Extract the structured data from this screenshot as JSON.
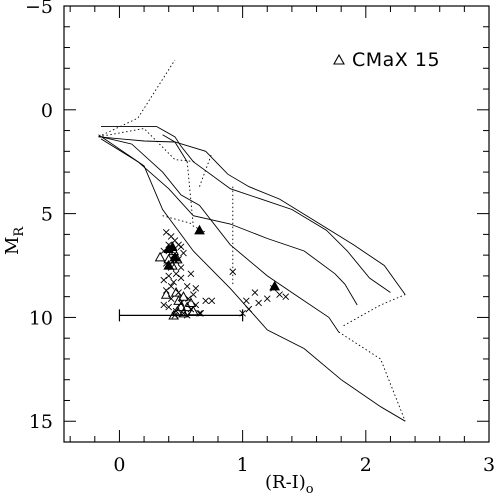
{
  "chart_data": {
    "type": "scatter",
    "xlabel": "(R-I)",
    "xlabel_subscript": "o",
    "ylabel": "M",
    "ylabel_subscript": "R",
    "xlim": [
      -0.45,
      3.0
    ],
    "ylim": [
      16.0,
      -5.0
    ],
    "x_ticks": [
      0,
      1,
      2,
      3
    ],
    "y_ticks": [
      -5,
      0,
      5,
      10,
      15
    ],
    "x_tick_labels": [
      "0",
      "1",
      "2",
      "3"
    ],
    "y_tick_labels": [
      "−5",
      "0",
      "5",
      "10",
      "15"
    ],
    "legend": {
      "label": "CMaX 15",
      "marker": "open-triangle",
      "placement": "top-right"
    },
    "reference_curves": [
      {
        "style": "solid",
        "points": [
          [
            -0.17,
            1.3
          ],
          [
            0.2,
            1.5
          ],
          [
            0.45,
            1.55
          ],
          [
            0.7,
            2.0
          ],
          [
            0.88,
            3.1
          ],
          [
            1.05,
            3.7
          ],
          [
            1.3,
            4.3
          ],
          [
            1.6,
            5.4
          ],
          [
            1.9,
            6.5
          ],
          [
            2.15,
            7.5
          ],
          [
            2.32,
            8.9
          ]
        ]
      },
      {
        "style": "solid",
        "points": [
          [
            -0.15,
            1.4
          ],
          [
            0.15,
            2.5
          ],
          [
            0.4,
            3.8
          ],
          [
            0.6,
            5.1
          ],
          [
            0.9,
            5.5
          ],
          [
            1.2,
            6.2
          ],
          [
            1.5,
            6.8
          ],
          [
            1.75,
            7.9
          ],
          [
            1.83,
            8.4
          ],
          [
            1.93,
            9.4
          ]
        ]
      },
      {
        "style": "solid",
        "points": [
          [
            -0.15,
            1.3
          ],
          [
            0.1,
            1.65
          ],
          [
            0.35,
            3.0
          ],
          [
            0.5,
            4.1
          ],
          [
            0.65,
            4.6
          ],
          [
            0.9,
            6.5
          ],
          [
            1.2,
            8.0
          ],
          [
            1.45,
            9.0
          ],
          [
            1.7,
            10.0
          ],
          [
            1.78,
            10.7
          ]
        ]
      },
      {
        "style": "solid",
        "points": [
          [
            -0.17,
            1.2
          ],
          [
            0.2,
            2.7
          ],
          [
            0.35,
            4.8
          ],
          [
            0.6,
            6.8
          ],
          [
            0.9,
            8.6
          ],
          [
            1.2,
            10.6
          ],
          [
            1.5,
            11.5
          ],
          [
            1.8,
            13.0
          ],
          [
            2.12,
            14.3
          ],
          [
            2.32,
            15.0
          ]
        ]
      },
      {
        "style": "solid",
        "points": [
          [
            -0.15,
            0.8
          ],
          [
            0.3,
            0.8
          ],
          [
            0.45,
            1.3
          ],
          [
            0.5,
            1.75
          ],
          [
            0.6,
            2.5
          ],
          [
            0.9,
            3.8
          ],
          [
            1.15,
            4.3
          ],
          [
            1.4,
            4.8
          ],
          [
            1.68,
            5.8
          ],
          [
            1.85,
            6.8
          ],
          [
            2.03,
            8.1
          ],
          [
            2.2,
            8.8
          ]
        ]
      },
      {
        "style": "solid",
        "points": [
          [
            0.35,
            1.2
          ],
          [
            0.45,
            1.55
          ],
          [
            0.55,
            2.5
          ]
        ]
      },
      {
        "style": "dotted",
        "points": [
          [
            -0.17,
            1.3
          ],
          [
            0.2,
            0.9
          ],
          [
            0.45,
            2.4
          ],
          [
            0.62,
            2.5
          ]
        ]
      },
      {
        "style": "dotted",
        "points": [
          [
            -0.17,
            1.3
          ],
          [
            0.15,
            0.4
          ],
          [
            0.45,
            -2.4
          ]
        ]
      },
      {
        "style": "dotted",
        "points": [
          [
            0.55,
            2.5
          ],
          [
            0.6,
            5.6
          ],
          [
            0.7,
            5.9
          ]
        ]
      },
      {
        "style": "dotted",
        "points": [
          [
            0.65,
            3.7
          ],
          [
            0.75,
            2.1
          ]
        ]
      },
      {
        "style": "dotted",
        "points": [
          [
            0.92,
            3.7
          ],
          [
            0.92,
            8.5
          ]
        ]
      },
      {
        "style": "dotted",
        "points": [
          [
            0.35,
            5.1
          ],
          [
            0.6,
            5.5
          ]
        ]
      },
      {
        "style": "dotted",
        "points": [
          [
            1.82,
            10.4
          ],
          [
            2.12,
            9.4
          ],
          [
            2.32,
            8.9
          ]
        ]
      },
      {
        "style": "dotted",
        "points": [
          [
            1.78,
            10.7
          ],
          [
            2.12,
            12.0
          ],
          [
            2.32,
            15.0
          ]
        ]
      }
    ],
    "series": [
      {
        "marker": "cross",
        "points": [
          [
            0.38,
            5.9
          ],
          [
            0.42,
            6.1
          ],
          [
            0.4,
            6.5
          ],
          [
            0.45,
            6.3
          ],
          [
            0.5,
            6.6
          ],
          [
            0.36,
            6.8
          ],
          [
            0.44,
            7.0
          ],
          [
            0.48,
            7.2
          ],
          [
            0.38,
            7.4
          ],
          [
            0.42,
            7.6
          ],
          [
            0.46,
            7.9
          ],
          [
            0.4,
            8.0
          ],
          [
            0.44,
            8.3
          ],
          [
            0.5,
            8.1
          ],
          [
            0.38,
            8.7
          ],
          [
            0.48,
            8.8
          ],
          [
            0.42,
            9.1
          ],
          [
            0.5,
            9.3
          ],
          [
            0.4,
            9.5
          ],
          [
            0.46,
            9.7
          ],
          [
            0.55,
            9.9
          ],
          [
            0.58,
            9.6
          ],
          [
            0.62,
            9.4
          ],
          [
            0.7,
            9.2
          ],
          [
            0.55,
            8.5
          ],
          [
            0.6,
            8.9
          ],
          [
            0.52,
            9.8
          ],
          [
            0.66,
            9.8
          ],
          [
            0.36,
            8.2
          ],
          [
            0.42,
            8.5
          ],
          [
            0.5,
            7.6
          ],
          [
            0.46,
            7.3
          ],
          [
            0.52,
            6.9
          ],
          [
            0.58,
            7.9
          ],
          [
            0.45,
            9.9
          ],
          [
            0.56,
            9.1
          ],
          [
            0.62,
            8.6
          ],
          [
            0.48,
            6.5
          ],
          [
            0.92,
            7.8
          ],
          [
            1.1,
            8.8
          ],
          [
            1.13,
            9.3
          ],
          [
            1.2,
            9.1
          ],
          [
            1.25,
            8.6
          ],
          [
            1.3,
            8.9
          ],
          [
            1.05,
            9.6
          ],
          [
            1.0,
            9.8
          ],
          [
            1.35,
            9.0
          ],
          [
            1.03,
            9.2
          ],
          [
            0.75,
            9.2
          ],
          [
            0.36,
            9.4
          ],
          [
            0.65,
            9.8
          ]
        ]
      },
      {
        "name": "CMaX 15",
        "marker": "open-triangle",
        "points": [
          [
            0.33,
            7.1
          ],
          [
            0.4,
            7.2
          ],
          [
            0.44,
            6.8
          ],
          [
            0.47,
            7.2
          ],
          [
            0.43,
            7.5
          ],
          [
            0.46,
            8.8
          ],
          [
            0.48,
            9.2
          ],
          [
            0.52,
            9.0
          ],
          [
            0.5,
            9.5
          ],
          [
            0.47,
            9.7
          ],
          [
            0.55,
            9.5
          ],
          [
            0.58,
            9.3
          ],
          [
            0.52,
            9.8
          ],
          [
            0.44,
            9.9
          ],
          [
            0.6,
            9.7
          ],
          [
            0.38,
            8.9
          ]
        ]
      },
      {
        "marker": "filled-triangle",
        "points": [
          [
            0.65,
            5.8
          ],
          [
            0.4,
            6.7
          ],
          [
            0.45,
            7.1
          ],
          [
            0.4,
            7.5
          ],
          [
            1.26,
            8.5
          ],
          [
            0.43,
            6.6
          ]
        ]
      }
    ],
    "error_bar": {
      "x_from": 0.0,
      "x_to": 1.0,
      "y": 9.9
    }
  }
}
